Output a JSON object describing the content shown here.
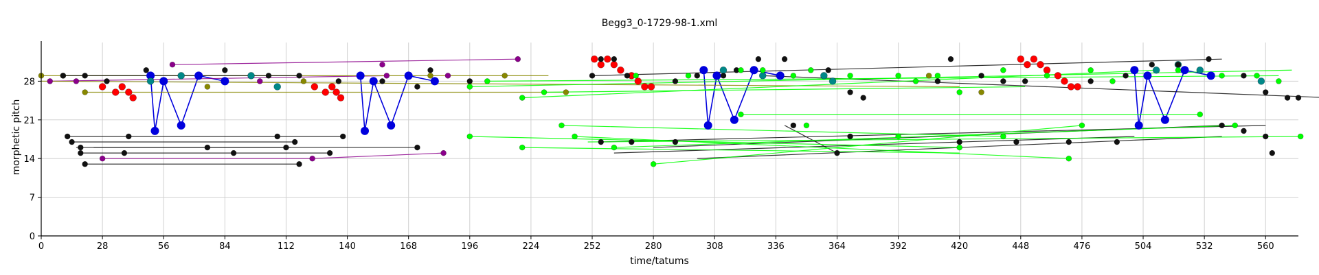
{
  "chart_data": {
    "type": "scatter",
    "title": "Begg3_0-1729-98-1.xml",
    "xlabel": "time/tatums",
    "ylabel": "morphetic pitch",
    "xlim": [
      0,
      575
    ],
    "ylim": [
      0,
      35
    ],
    "x_ticks": [
      0,
      28,
      56,
      84,
      112,
      140,
      168,
      196,
      224,
      252,
      280,
      308,
      336,
      364,
      392,
      420,
      448,
      476,
      504,
      532,
      560
    ],
    "y_ticks": [
      0,
      7,
      14,
      21,
      28
    ],
    "grid": true,
    "series": [
      {
        "color": "#ff0000",
        "size": 5,
        "points": [
          [
            28,
            27
          ],
          [
            34,
            26
          ],
          [
            37,
            27
          ],
          [
            40,
            26
          ],
          [
            42,
            25
          ],
          [
            125,
            27
          ],
          [
            130,
            26
          ],
          [
            133,
            27
          ],
          [
            135,
            26
          ],
          [
            137,
            25
          ],
          [
            253,
            32
          ],
          [
            256,
            31
          ],
          [
            259,
            32
          ],
          [
            262,
            31
          ],
          [
            265,
            30
          ],
          [
            270,
            29
          ],
          [
            273,
            28
          ],
          [
            276,
            27
          ],
          [
            279,
            27
          ],
          [
            448,
            32
          ],
          [
            451,
            31
          ],
          [
            454,
            32
          ],
          [
            457,
            31
          ],
          [
            460,
            30
          ],
          [
            465,
            29
          ],
          [
            468,
            28
          ],
          [
            471,
            27
          ],
          [
            474,
            27
          ]
        ]
      },
      {
        "color": "#0000dd",
        "size": 5,
        "segments": [
          [
            [
              50,
              29
            ],
            [
              52,
              19
            ],
            [
              56,
              28
            ],
            [
              64,
              20
            ],
            [
              72,
              29
            ],
            [
              84,
              28
            ]
          ],
          [
            [
              146,
              29
            ],
            [
              148,
              19
            ],
            [
              152,
              28
            ],
            [
              160,
              20
            ],
            [
              168,
              29
            ],
            [
              180,
              28
            ]
          ],
          [
            [
              303,
              30
            ],
            [
              305,
              20
            ],
            [
              309,
              29
            ],
            [
              317,
              21
            ],
            [
              326,
              30
            ],
            [
              338,
              29
            ]
          ],
          [
            [
              500,
              30
            ],
            [
              502,
              20
            ],
            [
              506,
              29
            ],
            [
              514,
              21
            ],
            [
              523,
              30
            ],
            [
              535,
              29
            ]
          ]
        ],
        "points": []
      },
      {
        "color": "#008888",
        "size": 5,
        "points": [
          [
            50,
            28
          ],
          [
            64,
            29
          ],
          [
            96,
            29
          ],
          [
            108,
            27
          ],
          [
            312,
            30
          ],
          [
            330,
            29
          ],
          [
            358,
            29
          ],
          [
            362,
            28
          ],
          [
            510,
            30
          ],
          [
            520,
            31
          ],
          [
            530,
            30
          ],
          [
            558,
            28
          ]
        ]
      },
      {
        "color": "#8b008b",
        "size": 4,
        "lines": [
          [
            [
              60,
              31
            ],
            [
              218,
              32
            ]
          ],
          [
            [
              4,
              28
            ],
            [
              158,
              29
            ]
          ],
          [
            [
              28,
              14
            ],
            [
              124,
              14
            ]
          ],
          [
            [
              124,
              14
            ],
            [
              184,
              15
            ]
          ]
        ],
        "points": [
          [
            60,
            31
          ],
          [
            156,
            31
          ],
          [
            218,
            32
          ],
          [
            4,
            28
          ],
          [
            16,
            28
          ],
          [
            100,
            28
          ],
          [
            158,
            29
          ],
          [
            186,
            29
          ],
          [
            28,
            14
          ],
          [
            124,
            14
          ],
          [
            184,
            15
          ]
        ]
      },
      {
        "color": "#888800",
        "size": 4,
        "lines": [
          [
            [
              0,
              29
            ],
            [
              232,
              29
            ]
          ],
          [
            [
              20,
              26
            ],
            [
              240,
              26
            ]
          ],
          [
            [
              0,
              28
            ],
            [
              420,
              27
            ]
          ]
        ],
        "points": [
          [
            0,
            29
          ],
          [
            10,
            29
          ],
          [
            76,
            27
          ],
          [
            120,
            28
          ],
          [
            178,
            29
          ],
          [
            212,
            29
          ],
          [
            20,
            26
          ],
          [
            240,
            26
          ],
          [
            406,
            29
          ],
          [
            430,
            26
          ]
        ]
      },
      {
        "color": "#111111",
        "size": 4,
        "lines": [
          [
            [
              10,
              29
            ],
            [
              118,
              29
            ]
          ],
          [
            [
              12,
              18
            ],
            [
              138,
              18
            ]
          ],
          [
            [
              14,
              17
            ],
            [
              116,
              17
            ]
          ],
          [
            [
              16,
              16
            ],
            [
              114,
              16
            ]
          ],
          [
            [
              18,
              15
            ],
            [
              132,
              15
            ]
          ],
          [
            [
              20,
              13
            ],
            [
              118,
              13
            ]
          ],
          [
            [
              24,
              16
            ],
            [
              172,
              16
            ]
          ],
          [
            [
              252,
              29
            ],
            [
              540,
              32
            ]
          ],
          [
            [
              256,
              17
            ],
            [
              560,
              20
            ]
          ],
          [
            [
              262,
              15
            ],
            [
              500,
              18
            ]
          ],
          [
            [
              280,
              16
            ],
            [
              540,
              20
            ]
          ],
          [
            [
              300,
              14
            ],
            [
              540,
              18
            ]
          ],
          [
            [
              340,
              20
            ],
            [
              364,
              15
            ]
          ],
          [
            [
              330,
              29
            ],
            [
              590,
              25
            ]
          ]
        ],
        "points": [
          [
            10,
            29
          ],
          [
            20,
            29
          ],
          [
            30,
            28
          ],
          [
            48,
            30
          ],
          [
            84,
            30
          ],
          [
            104,
            29
          ],
          [
            118,
            29
          ],
          [
            136,
            28
          ],
          [
            156,
            28
          ],
          [
            172,
            27
          ],
          [
            178,
            30
          ],
          [
            196,
            28
          ],
          [
            12,
            18
          ],
          [
            40,
            18
          ],
          [
            108,
            18
          ],
          [
            116,
            17
          ],
          [
            138,
            18
          ],
          [
            14,
            17
          ],
          [
            18,
            16
          ],
          [
            76,
            16
          ],
          [
            112,
            16
          ],
          [
            172,
            16
          ],
          [
            18,
            15
          ],
          [
            38,
            15
          ],
          [
            88,
            15
          ],
          [
            132,
            15
          ],
          [
            20,
            13
          ],
          [
            118,
            13
          ],
          [
            252,
            29
          ],
          [
            256,
            32
          ],
          [
            262,
            32
          ],
          [
            268,
            29
          ],
          [
            290,
            28
          ],
          [
            300,
            29
          ],
          [
            312,
            29
          ],
          [
            318,
            30
          ],
          [
            328,
            32
          ],
          [
            340,
            32
          ],
          [
            360,
            30
          ],
          [
            370,
            26
          ],
          [
            376,
            25
          ],
          [
            410,
            28
          ],
          [
            416,
            32
          ],
          [
            430,
            29
          ],
          [
            440,
            28
          ],
          [
            450,
            28
          ],
          [
            480,
            28
          ],
          [
            496,
            29
          ],
          [
            508,
            31
          ],
          [
            520,
            31
          ],
          [
            534,
            32
          ],
          [
            550,
            29
          ],
          [
            560,
            26
          ],
          [
            570,
            25
          ],
          [
            575,
            25
          ],
          [
            256,
            17
          ],
          [
            270,
            17
          ],
          [
            290,
            17
          ],
          [
            344,
            20
          ],
          [
            364,
            15
          ],
          [
            370,
            18
          ],
          [
            420,
            17
          ],
          [
            446,
            17
          ],
          [
            470,
            17
          ],
          [
            492,
            17
          ],
          [
            540,
            20
          ],
          [
            550,
            19
          ],
          [
            560,
            18
          ],
          [
            563,
            15
          ]
        ]
      },
      {
        "color": "#00ff00",
        "size": 4,
        "lines": [
          [
            [
              196,
              18
            ],
            [
              420,
              16
            ]
          ],
          [
            [
              220,
              16
            ],
            [
              420,
              15
            ]
          ],
          [
            [
              238,
              20
            ],
            [
              440,
              18
            ]
          ],
          [
            [
              244,
              18
            ],
            [
              470,
              14
            ]
          ],
          [
            [
              250,
              17
            ],
            [
              576,
              18
            ]
          ],
          [
            [
              262,
              16
            ],
            [
              546,
              20
            ]
          ],
          [
            [
              280,
              13
            ],
            [
              476,
              20
            ]
          ],
          [
            [
              196,
              27
            ],
            [
              572,
              30
            ]
          ],
          [
            [
              204,
              28
            ],
            [
              566,
              29
            ]
          ],
          [
            [
              220,
              25
            ],
            [
              510,
              30
            ]
          ],
          [
            [
              230,
              26
            ],
            [
              450,
              27
            ]
          ],
          [
            [
              320,
              22
            ],
            [
              530,
              22
            ]
          ]
        ],
        "points": [
          [
            196,
            18
          ],
          [
            220,
            16
          ],
          [
            238,
            20
          ],
          [
            244,
            18
          ],
          [
            262,
            16
          ],
          [
            280,
            13
          ],
          [
            350,
            20
          ],
          [
            392,
            18
          ],
          [
            420,
            16
          ],
          [
            440,
            18
          ],
          [
            470,
            14
          ],
          [
            476,
            20
          ],
          [
            546,
            20
          ],
          [
            576,
            18
          ],
          [
            196,
            27
          ],
          [
            204,
            28
          ],
          [
            220,
            25
          ],
          [
            230,
            26
          ],
          [
            272,
            29
          ],
          [
            296,
            29
          ],
          [
            320,
            30
          ],
          [
            330,
            30
          ],
          [
            344,
            29
          ],
          [
            352,
            30
          ],
          [
            370,
            29
          ],
          [
            392,
            29
          ],
          [
            400,
            28
          ],
          [
            410,
            29
          ],
          [
            420,
            26
          ],
          [
            440,
            30
          ],
          [
            460,
            29
          ],
          [
            480,
            30
          ],
          [
            490,
            28
          ],
          [
            520,
            30
          ],
          [
            540,
            29
          ],
          [
            556,
            29
          ],
          [
            566,
            28
          ],
          [
            320,
            22
          ],
          [
            530,
            22
          ]
        ]
      }
    ]
  }
}
